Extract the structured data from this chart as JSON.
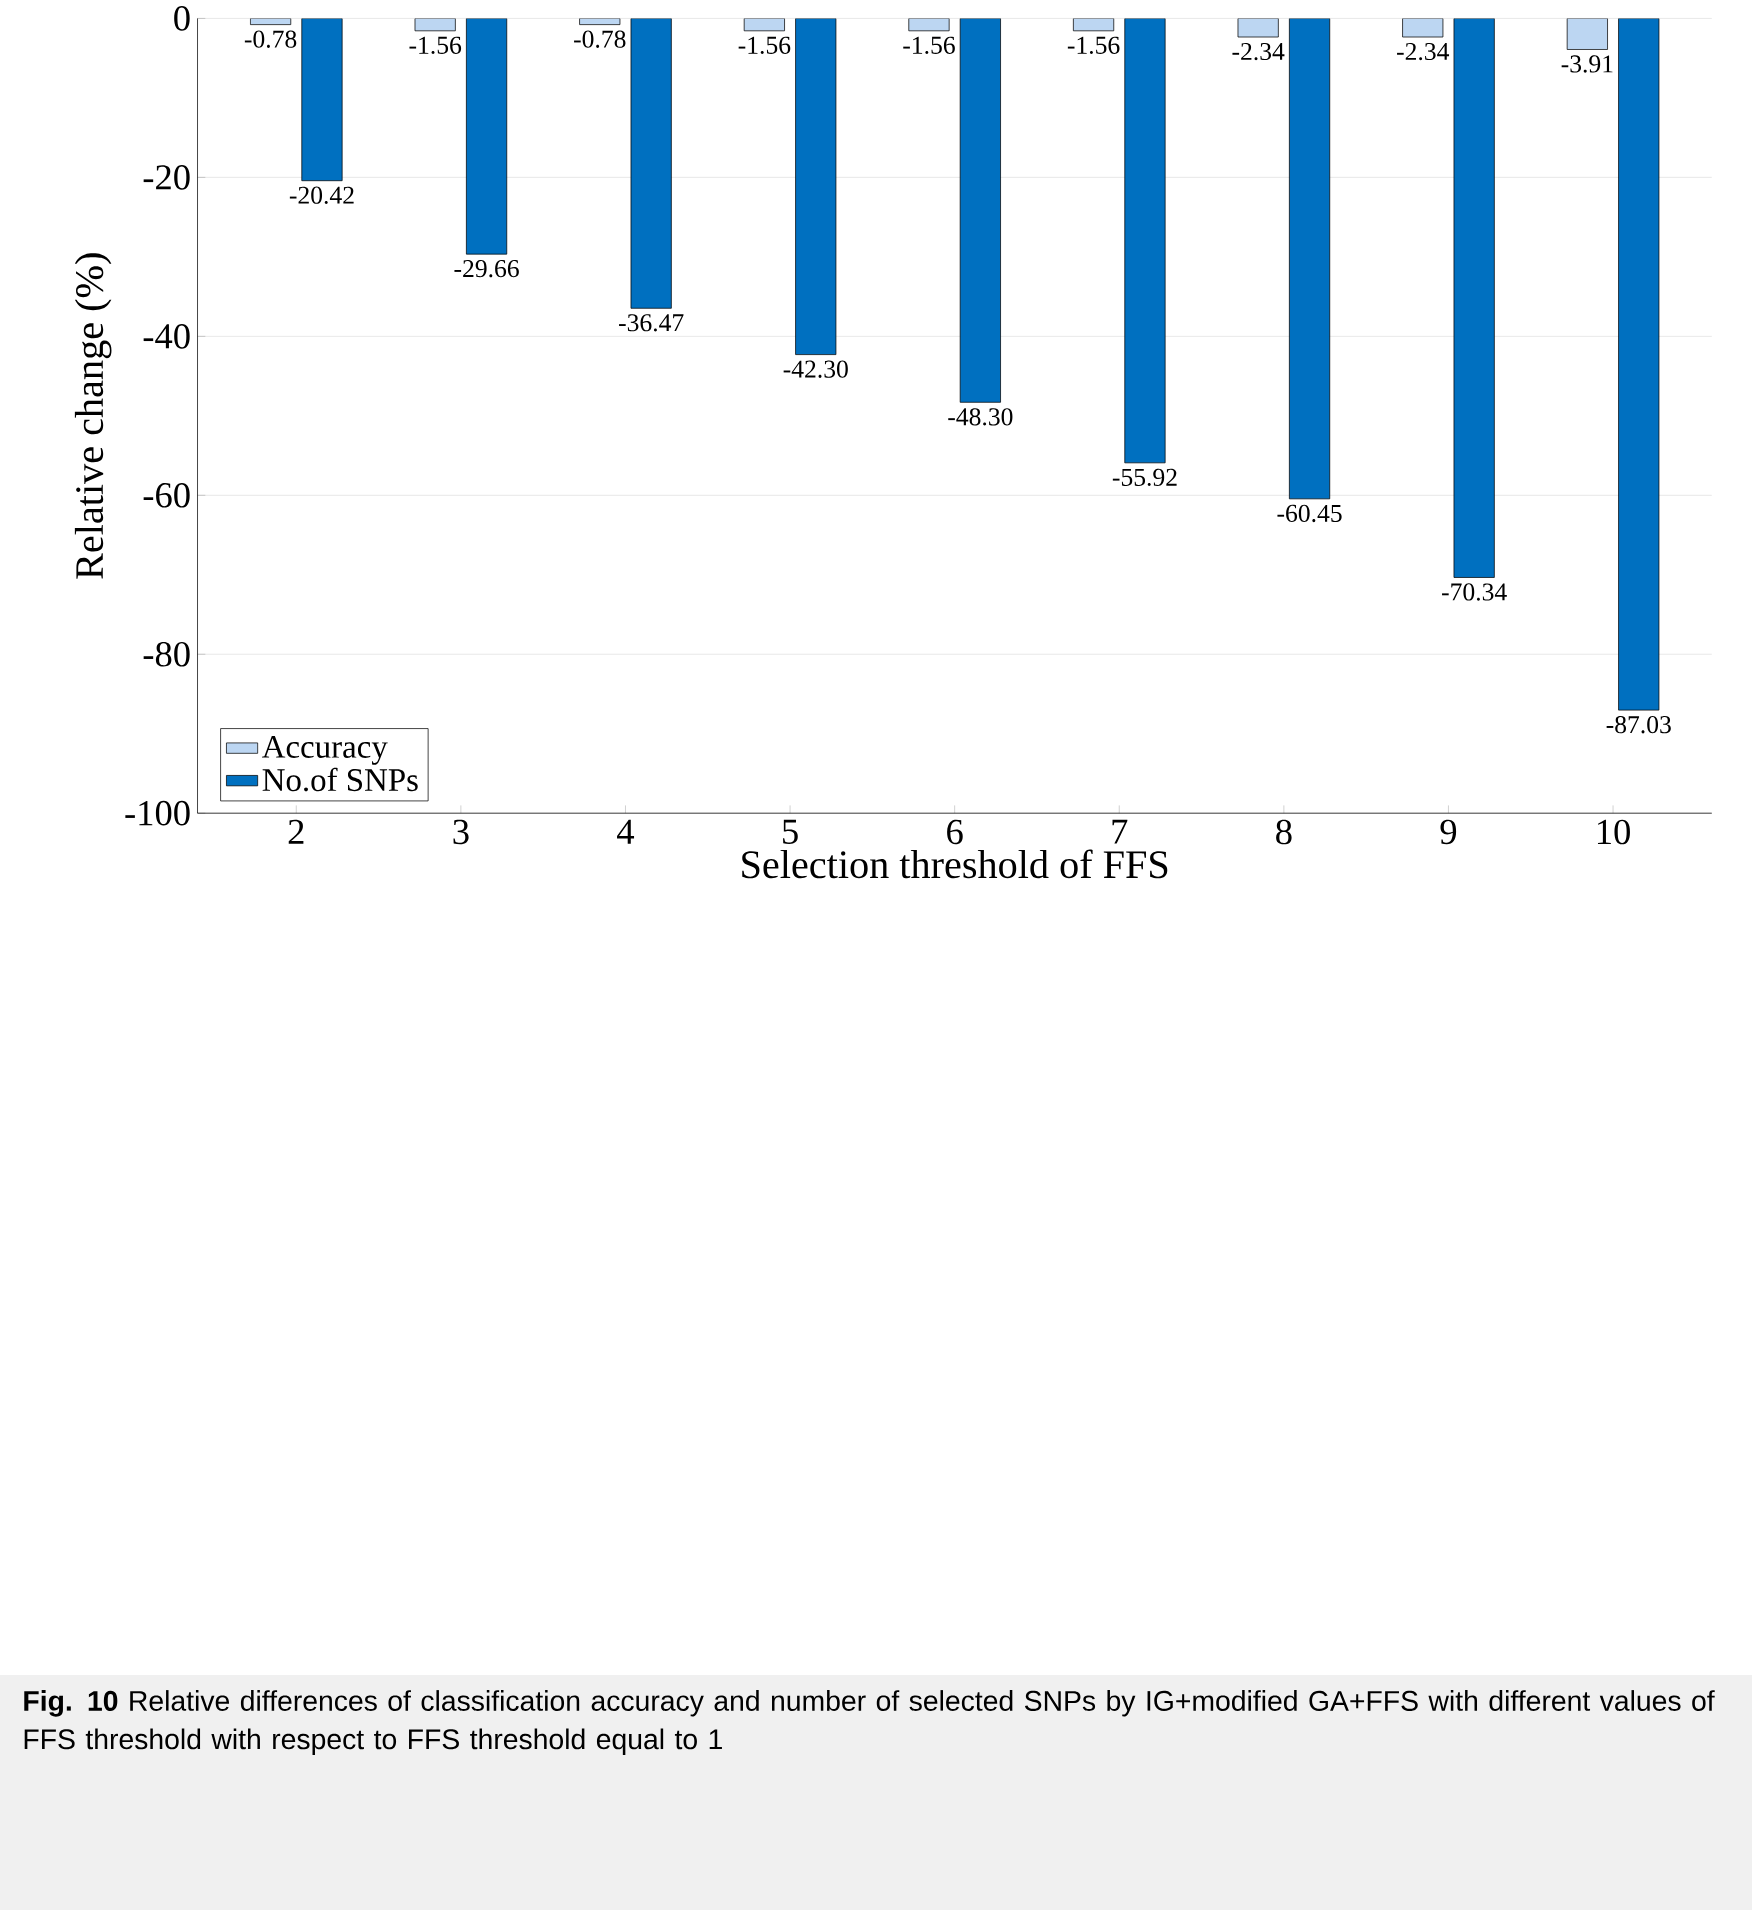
{
  "chart_data": {
    "type": "bar",
    "categories": [
      "2",
      "3",
      "4",
      "5",
      "6",
      "7",
      "8",
      "9",
      "10"
    ],
    "series": [
      {
        "name": "Accuracy",
        "color": "#bcd6f2",
        "values": [
          -0.78,
          -1.56,
          -0.78,
          -1.56,
          -1.56,
          -1.56,
          -2.34,
          -2.34,
          -3.91
        ],
        "value_labels": [
          "-0.78",
          "-1.56",
          "-0.78",
          "-1.56",
          "-1.56",
          "-1.56",
          "-2.34",
          "-2.34",
          "-3.91"
        ]
      },
      {
        "name": "No.of SNPs",
        "color": "#0070c0",
        "values": [
          -20.42,
          -29.66,
          -36.47,
          -42.3,
          -48.3,
          -55.92,
          -60.45,
          -70.34,
          -87.03
        ],
        "value_labels": [
          "-20.42",
          "-29.66",
          "-36.47",
          "-42.30",
          "-48.30",
          "-55.92",
          "-60.45",
          "-70.34",
          "-87.03"
        ]
      }
    ],
    "xlabel": "Selection threshold of FFS",
    "ylabel": "Relative change (%)",
    "ylim": [
      -100,
      0
    ],
    "yticks": [
      0,
      -20,
      -40,
      -60,
      -80,
      -100
    ],
    "grid": "y",
    "legend": "bottom left",
    "annotations": [
      "**Fig. 10** Relative differences of classification accuracy and number of selected SNPs by IG+modified GA+FFS with different values of FFS threshold with respect to FFS threshold equal to 1"
    ]
  }
}
